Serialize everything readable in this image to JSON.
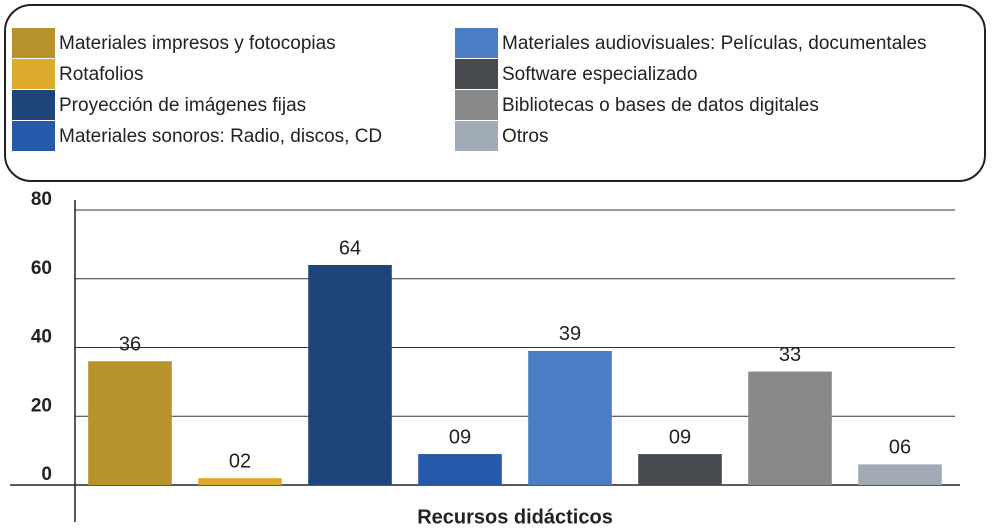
{
  "chart_data": {
    "type": "bar",
    "x_label": "Recursos didácticos",
    "categories": [
      "Materiales impresos y fotocopias",
      "Rotafolios",
      "Proyección de imágenes fijas",
      "Materiales sonoros: Radio, discos, CD",
      "Materiales audiovisuales: Películas, documentales",
      "Software especializado",
      "Bibliotecas o bases de datos digitales",
      "Otros"
    ],
    "values": [
      36,
      2,
      64,
      9,
      39,
      9,
      33,
      6
    ],
    "value_labels": [
      "36",
      "02",
      "64",
      "09",
      "39",
      "09",
      "33",
      "06"
    ],
    "colors": [
      "#b8922a",
      "#dcab2c",
      "#1e4479",
      "#2659a9",
      "#4a7dc4",
      "#464a4f",
      "#87898b",
      "#a1abb8"
    ],
    "ylim": [
      0,
      80
    ],
    "yticks": [
      0,
      20,
      40,
      60,
      80
    ],
    "grid": true
  }
}
